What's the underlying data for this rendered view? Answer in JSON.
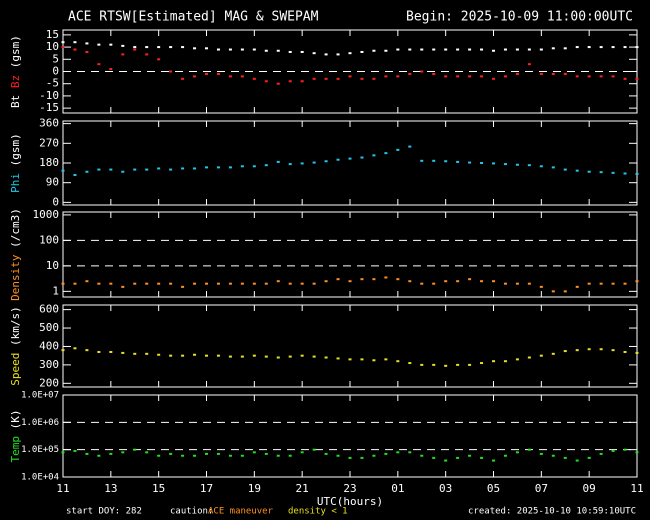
{
  "header": {
    "title": "ACE RTSW[Estimated] MAG & SWEPAM",
    "begin": "Begin: 2025-10-09 11:00:00UTC"
  },
  "x_axis": {
    "label": "UTC(hours)",
    "xlim": [
      0,
      24
    ],
    "xticks": [
      {
        "value": 0,
        "label": "11"
      },
      {
        "value": 2,
        "label": "13"
      },
      {
        "value": 4,
        "label": "15"
      },
      {
        "value": 6,
        "label": "17"
      },
      {
        "value": 8,
        "label": "19"
      },
      {
        "value": 10,
        "label": "21"
      },
      {
        "value": 12,
        "label": "23"
      },
      {
        "value": 14,
        "label": "01"
      },
      {
        "value": 16,
        "label": "03"
      },
      {
        "value": 18,
        "label": "05"
      },
      {
        "value": 20,
        "label": "07"
      },
      {
        "value": 22,
        "label": "09"
      },
      {
        "value": 24,
        "label": "11"
      }
    ]
  },
  "x": [
    0,
    0.5,
    1,
    1.5,
    2,
    2.5,
    3,
    3.5,
    4,
    4.5,
    5,
    5.5,
    6,
    6.5,
    7,
    7.5,
    8,
    8.5,
    9,
    9.5,
    10,
    10.5,
    11,
    11.5,
    12,
    12.5,
    13,
    13.5,
    14,
    14.5,
    15,
    15.5,
    16,
    16.5,
    17,
    17.5,
    18,
    18.5,
    19,
    19.5,
    20,
    20.5,
    21,
    21.5,
    22,
    22.5,
    23,
    23.5,
    24
  ],
  "chart_data": [
    {
      "type": "scatter",
      "ylabel_unit": "(gsm)",
      "log": false,
      "ylim": [
        -17,
        17
      ],
      "yticks": [
        15,
        10,
        5,
        0,
        -5,
        -10,
        -15
      ],
      "dashed_lines": [
        0
      ],
      "series": [
        {
          "name": "Bt",
          "color": "#ffffff",
          "values": [
            12,
            12,
            11.5,
            11,
            11,
            10.5,
            10,
            10,
            10,
            10,
            10,
            9.5,
            9.5,
            9,
            9,
            9,
            9,
            8.5,
            8.5,
            8,
            8,
            7.5,
            7,
            7,
            7.5,
            8,
            8.5,
            8.5,
            9,
            9,
            9,
            9,
            9,
            9,
            9,
            9,
            8.5,
            9,
            9,
            9,
            9,
            9.5,
            9.5,
            10,
            10,
            10,
            10,
            10,
            10
          ]
        },
        {
          "name": "Bz",
          "color": "#ff2020",
          "values": [
            10,
            9,
            8,
            3,
            1,
            7,
            9,
            7,
            5,
            0,
            -3,
            -2,
            -1,
            -1,
            -2,
            -2,
            -3,
            -4,
            -5,
            -4,
            -4,
            -3,
            -3,
            -3,
            -2,
            -3,
            -3,
            -2,
            -2,
            -1,
            0,
            -1,
            -2,
            -2,
            -2,
            -2,
            -3,
            -2,
            -1,
            3,
            -1,
            -1,
            -1,
            -2,
            -2,
            -2,
            -2,
            -3,
            -3
          ]
        }
      ]
    },
    {
      "type": "scatter",
      "ylabel_unit": "(gsm)",
      "log": false,
      "ylim": [
        -12,
        372
      ],
      "yticks": [
        0,
        90,
        180,
        270,
        360
      ],
      "dashed_lines": [],
      "series": [
        {
          "name": "Phi",
          "color": "#20c8e8",
          "values": [
            145,
            125,
            140,
            150,
            150,
            140,
            150,
            150,
            155,
            150,
            155,
            155,
            160,
            160,
            160,
            165,
            165,
            170,
            185,
            175,
            178,
            182,
            188,
            195,
            200,
            205,
            215,
            225,
            240,
            255,
            190,
            190,
            188,
            185,
            182,
            180,
            178,
            175,
            172,
            170,
            165,
            160,
            150,
            145,
            140,
            138,
            135,
            132,
            130
          ]
        }
      ]
    },
    {
      "type": "scatter",
      "ylabel_unit": "(/cm3)",
      "log": true,
      "ylim": [
        0.6,
        1300
      ],
      "yticks": [
        1,
        10,
        100,
        1000
      ],
      "dashed_lines": [
        10,
        100
      ],
      "series": [
        {
          "name": "Density",
          "color": "#ff9020",
          "values": [
            2,
            2,
            2.5,
            2,
            2,
            1.5,
            2,
            2,
            2,
            2,
            1.5,
            2,
            2,
            2,
            2,
            2,
            2,
            2,
            2.5,
            2,
            2,
            2,
            2.5,
            3,
            2.5,
            3,
            3,
            3.5,
            3,
            2.5,
            2,
            2,
            2.5,
            2.5,
            3,
            2.5,
            2.5,
            2,
            2,
            2,
            1.5,
            1,
            1,
            1.5,
            2,
            2,
            2,
            2,
            2.5
          ]
        }
      ]
    },
    {
      "type": "scatter",
      "ylabel_unit": "(km/s)",
      "log": false,
      "ylim": [
        180,
        625
      ],
      "yticks": [
        200,
        300,
        400,
        500,
        600
      ],
      "dashed_lines": [],
      "series": [
        {
          "name": "Speed",
          "color": "#e8e020",
          "values": [
            380,
            390,
            380,
            370,
            370,
            365,
            360,
            360,
            355,
            350,
            350,
            355,
            350,
            350,
            345,
            345,
            350,
            345,
            340,
            345,
            350,
            345,
            340,
            335,
            330,
            330,
            325,
            330,
            320,
            310,
            300,
            300,
            295,
            300,
            300,
            310,
            320,
            320,
            330,
            340,
            350,
            360,
            375,
            380,
            385,
            385,
            380,
            370,
            365
          ]
        }
      ]
    },
    {
      "type": "scatter",
      "ylabel_unit": "(K)",
      "log": true,
      "ylim": [
        10000,
        10000000
      ],
      "yticks": [
        {
          "value": 10000,
          "label": "1.0E+04"
        },
        {
          "value": 100000,
          "label": "1.0E+05"
        },
        {
          "value": 1000000,
          "label": "1.0E+06"
        },
        {
          "value": 10000000,
          "label": "1.0E+07"
        }
      ],
      "dashed_lines": [
        100000,
        1000000
      ],
      "series": [
        {
          "name": "Temp",
          "color": "#20e020",
          "values": [
            80000,
            90000,
            70000,
            60000,
            70000,
            80000,
            100000,
            80000,
            60000,
            70000,
            60000,
            60000,
            70000,
            70000,
            60000,
            60000,
            80000,
            70000,
            60000,
            60000,
            80000,
            100000,
            70000,
            60000,
            50000,
            50000,
            60000,
            70000,
            80000,
            80000,
            60000,
            50000,
            40000,
            50000,
            60000,
            50000,
            40000,
            60000,
            80000,
            100000,
            70000,
            60000,
            50000,
            40000,
            50000,
            70000,
            90000,
            100000,
            80000
          ]
        }
      ]
    }
  ],
  "footer": {
    "start": "start DOY: 282",
    "caution": "caution:",
    "maneuver": "ACE maneuver",
    "density_note": "density < 1",
    "created": "created: 2025-10-10 10:59:10UTC"
  }
}
